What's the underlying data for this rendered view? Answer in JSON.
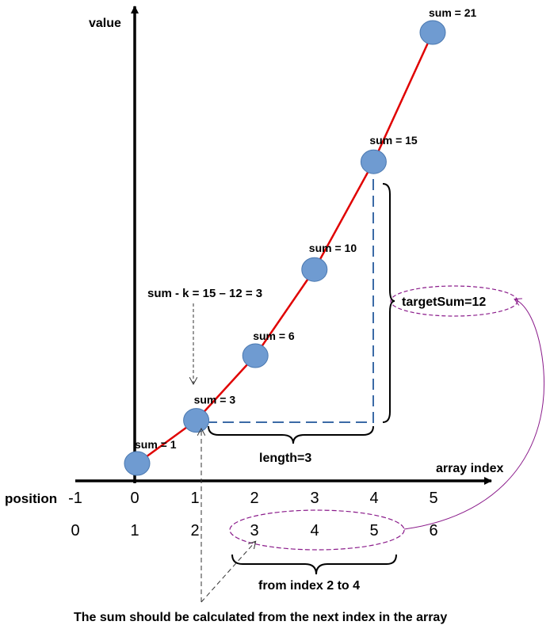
{
  "axes": {
    "y_label": "value",
    "x_label": "array index"
  },
  "points": [
    {
      "pos": 0,
      "sum": 1,
      "label": "sum = 1"
    },
    {
      "pos": 1,
      "sum": 3,
      "label": "sum = 3"
    },
    {
      "pos": 2,
      "sum": 6,
      "label": "sum = 6"
    },
    {
      "pos": 3,
      "sum": 10,
      "label": "sum = 10"
    },
    {
      "pos": 4,
      "sum": 15,
      "label": "sum = 15"
    },
    {
      "pos": 5,
      "sum": 21,
      "label": "sum = 21"
    }
  ],
  "rows": {
    "position_label": "position",
    "position_values": [
      "-1",
      "0",
      "1",
      "2",
      "3",
      "4",
      "5"
    ],
    "index_values": [
      "0",
      "1",
      "2",
      "3",
      "4",
      "5",
      "6"
    ]
  },
  "annotations": {
    "sum_minus_k": "sum - k = 15 – 12 = 3",
    "target_sum": "targetSum=12",
    "length": "length=3",
    "from_index": "from index 2 to 4",
    "footer": "The sum should be calculated from the next index in the array"
  },
  "colors": {
    "line": "#e00000",
    "point_fill": "#6f9bd1",
    "point_stroke": "#4a78b0",
    "dashed_blue": "#3b6aa6",
    "ellipse": "#8a1a8a"
  }
}
